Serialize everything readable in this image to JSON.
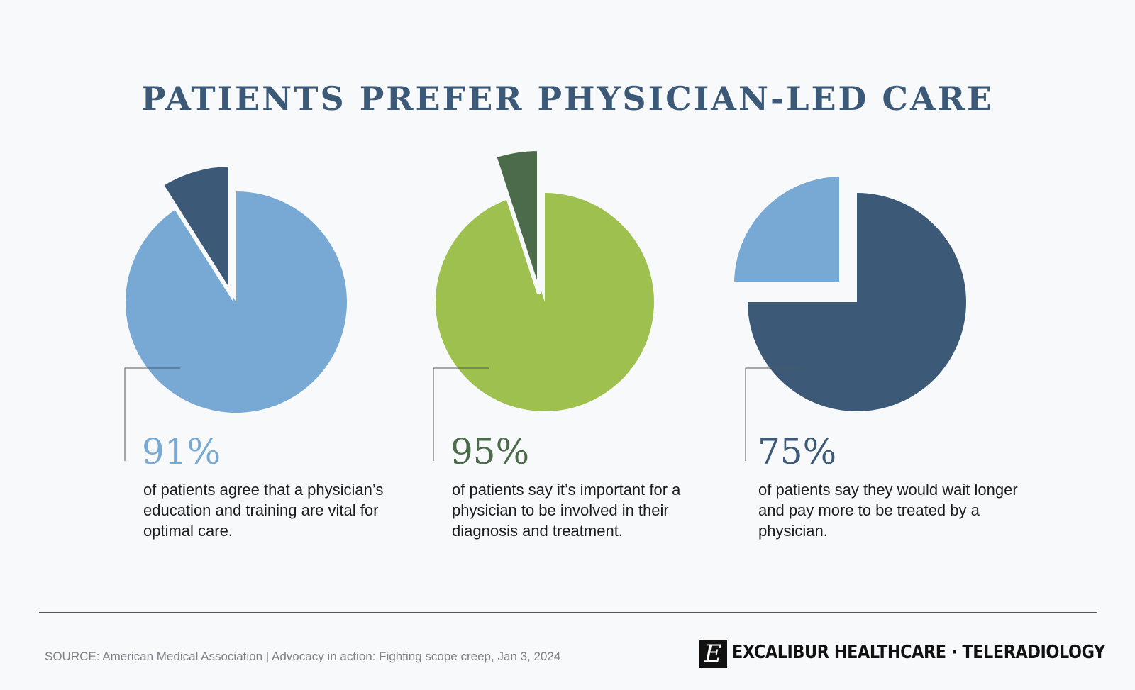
{
  "title": "PATIENTS PREFER PHYSICIAN-LED CARE",
  "chart_data": [
    {
      "type": "pie",
      "values": [
        91,
        9
      ],
      "colors": [
        "#78a9d5",
        "#3c5a78"
      ],
      "value_label": "91%",
      "value_color": "#78a9d5",
      "description": "of patients agree that a physician’s education and training are vital for optimal care."
    },
    {
      "type": "pie",
      "values": [
        95,
        5
      ],
      "colors": [
        "#9ec04e",
        "#4b6b4a"
      ],
      "value_label": "95%",
      "value_color": "#4b6b4a",
      "description": "of patients say it’s important for a physician to be involved in their diagnosis and treatment."
    },
    {
      "type": "pie",
      "values": [
        75,
        25
      ],
      "colors": [
        "#3c5a78",
        "#78a9d5"
      ],
      "value_label": "75%",
      "value_color": "#3c5a78",
      "description": "of patients say they would wait longer and pay more to be treated by a physician."
    }
  ],
  "footer": {
    "source": "SOURCE: American Medical Association  | Advocacy in action: Fighting scope creep, Jan 3, 2024",
    "brand": "EXCALIBUR HEALTHCARE · TELERADIOLOGY",
    "brand_icon": "E"
  }
}
